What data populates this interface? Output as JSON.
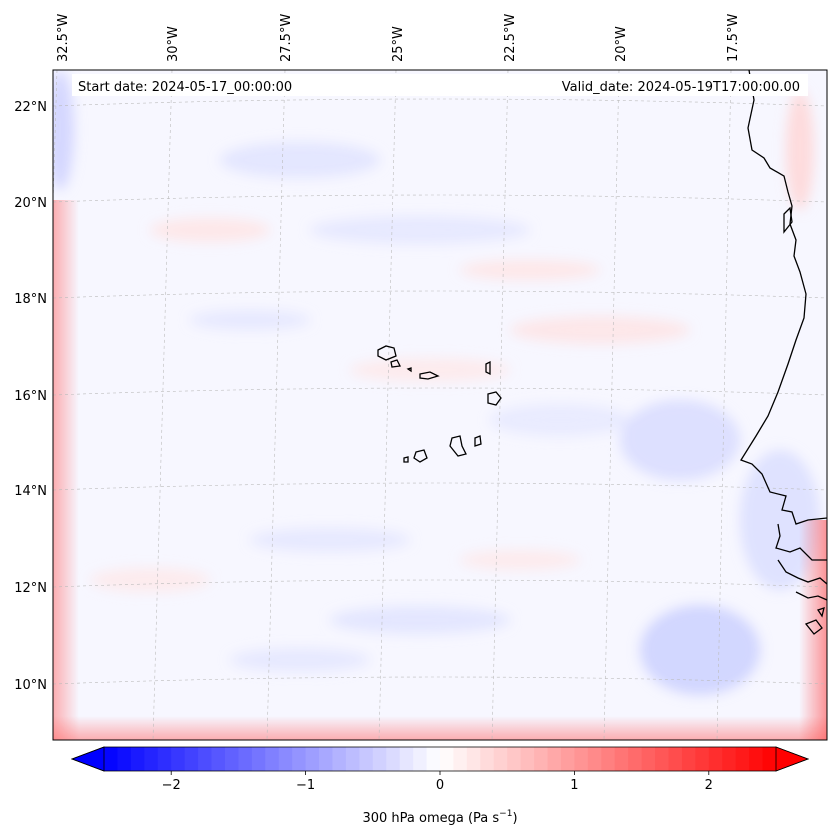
{
  "map": {
    "header": {
      "start_date": "Start date: 2024-05-17_00:00:00",
      "valid_date": "Valid_date: 2024-05-19T17:00:00.00"
    },
    "longitude_labels": [
      "32.5°W",
      "30°W",
      "27.5°W",
      "25°W",
      "22.5°W",
      "20°W",
      "17.5°W"
    ],
    "latitude_labels": [
      "22°N",
      "20°N",
      "18°N",
      "16°N",
      "14°N",
      "12°N",
      "10°N"
    ],
    "colorbar": {
      "ticks": [
        "−2",
        "−1",
        "0",
        "1",
        "2"
      ],
      "tick_values": [
        -2,
        -1,
        0,
        1,
        2
      ],
      "range": [
        -2.5,
        2.5
      ],
      "label": "300 hPa omega (Pa s",
      "label_sup": "−1",
      "label_close": ")",
      "colors": {
        "min": "#0000ff",
        "mid": "#ffffff",
        "max": "#ff0000"
      }
    },
    "colors": {
      "coastline": "#000000",
      "gridline": "#bbbbbb"
    }
  }
}
